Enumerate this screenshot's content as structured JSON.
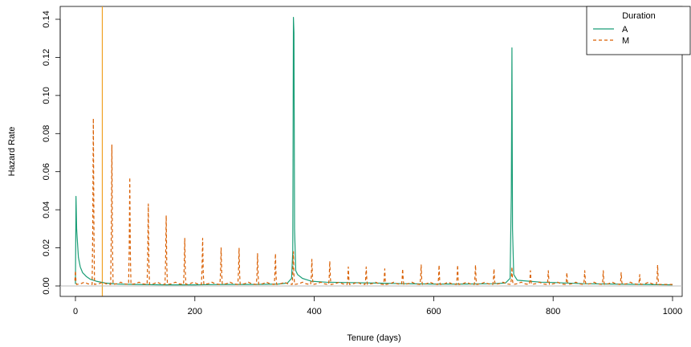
{
  "chart_data": {
    "type": "line",
    "title": "",
    "xlabel": "Tenure (days)",
    "ylabel": "Hazard Rate",
    "xlim": [
      0,
      1000
    ],
    "ylim": [
      0,
      0.14
    ],
    "x_ticks": [
      0,
      200,
      400,
      600,
      800,
      1000
    ],
    "y_ticks": [
      0.0,
      0.02,
      0.04,
      0.06,
      0.08,
      0.1,
      0.12,
      0.14
    ],
    "x_tick_labels": [
      "0",
      "200",
      "400",
      "600",
      "800",
      "1000"
    ],
    "y_tick_labels": [
      "0.00",
      "0.02",
      "0.04",
      "0.06",
      "0.08",
      "0.10",
      "0.12",
      "0.14"
    ],
    "grid": false,
    "reference_lines": [
      {
        "orientation": "vertical",
        "x": 45,
        "color": "#f0a020"
      },
      {
        "orientation": "horizontal",
        "y": 0,
        "color": "#bbbbbb"
      }
    ],
    "legend": {
      "title": "Duration",
      "position": "top-right",
      "entries": [
        "A",
        "M"
      ]
    },
    "series": [
      {
        "name": "A",
        "color": "#1b9e77",
        "dash": "solid",
        "points": [
          [
            0,
            0.001
          ],
          [
            1,
            0.047
          ],
          [
            2,
            0.03
          ],
          [
            3,
            0.025
          ],
          [
            5,
            0.015
          ],
          [
            8,
            0.01
          ],
          [
            12,
            0.007
          ],
          [
            18,
            0.005
          ],
          [
            25,
            0.0035
          ],
          [
            35,
            0.0025
          ],
          [
            50,
            0.0015
          ],
          [
            70,
            0.001
          ],
          [
            100,
            0.0008
          ],
          [
            150,
            0.0006
          ],
          [
            200,
            0.0006
          ],
          [
            250,
            0.0008
          ],
          [
            300,
            0.0008
          ],
          [
            340,
            0.001
          ],
          [
            355,
            0.0015
          ],
          [
            362,
            0.004
          ],
          [
            364,
            0.018
          ],
          [
            365,
            0.141
          ],
          [
            366,
            0.133
          ],
          [
            367,
            0.03
          ],
          [
            369,
            0.008
          ],
          [
            372,
            0.006
          ],
          [
            380,
            0.004
          ],
          [
            395,
            0.0025
          ],
          [
            420,
            0.002
          ],
          [
            450,
            0.0018
          ],
          [
            500,
            0.0015
          ],
          [
            550,
            0.0012
          ],
          [
            600,
            0.001
          ],
          [
            650,
            0.001
          ],
          [
            700,
            0.0012
          ],
          [
            720,
            0.0015
          ],
          [
            728,
            0.004
          ],
          [
            730,
            0.048
          ],
          [
            731,
            0.125
          ],
          [
            732,
            0.03
          ],
          [
            734,
            0.006
          ],
          [
            740,
            0.003
          ],
          [
            760,
            0.0025
          ],
          [
            780,
            0.002
          ],
          [
            800,
            0.0018
          ],
          [
            850,
            0.0012
          ],
          [
            900,
            0.001
          ],
          [
            950,
            0.0008
          ],
          [
            1000,
            0.0006
          ]
        ]
      },
      {
        "name": "M",
        "color": "#d95f02",
        "dash": "dashed",
        "peaks": [
          [
            0,
            0.008
          ],
          [
            30,
            0.088
          ],
          [
            61,
            0.074
          ],
          [
            91,
            0.057
          ],
          [
            122,
            0.043
          ],
          [
            152,
            0.037
          ],
          [
            183,
            0.025
          ],
          [
            213,
            0.025
          ],
          [
            244,
            0.02
          ],
          [
            274,
            0.02
          ],
          [
            305,
            0.017
          ],
          [
            335,
            0.017
          ],
          [
            365,
            0.018
          ],
          [
            396,
            0.014
          ],
          [
            426,
            0.013
          ],
          [
            457,
            0.01
          ],
          [
            487,
            0.01
          ],
          [
            518,
            0.009
          ],
          [
            548,
            0.009
          ],
          [
            579,
            0.011
          ],
          [
            609,
            0.011
          ],
          [
            640,
            0.011
          ],
          [
            670,
            0.011
          ],
          [
            701,
            0.009
          ],
          [
            731,
            0.01
          ],
          [
            762,
            0.008
          ],
          [
            792,
            0.008
          ],
          [
            823,
            0.007
          ],
          [
            853,
            0.008
          ],
          [
            884,
            0.008
          ],
          [
            914,
            0.007
          ],
          [
            945,
            0.006
          ],
          [
            975,
            0.011
          ]
        ],
        "baseline": 0.0008
      }
    ]
  }
}
